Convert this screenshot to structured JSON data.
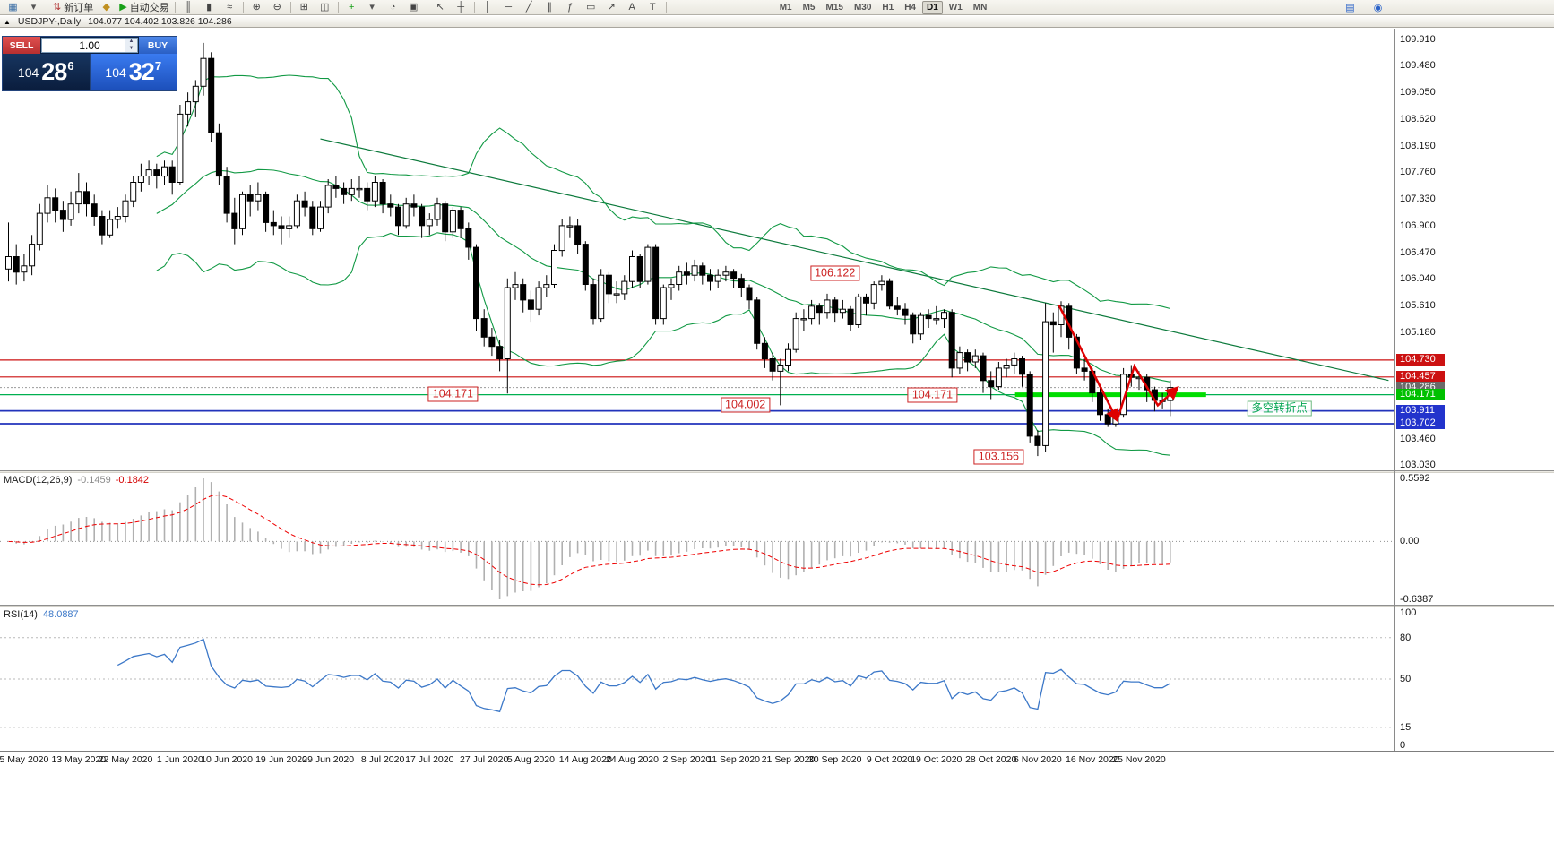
{
  "toolbar": {
    "items": [
      {
        "name": "new-chart-icon",
        "glyph": "▦",
        "color": "#3b6ea5"
      },
      {
        "name": "profiles-icon",
        "glyph": "▾",
        "color": "#555555"
      },
      {
        "sep": true
      },
      {
        "name": "new-order-button",
        "glyph": "⇅",
        "color": "#b03030",
        "label": "新订单"
      },
      {
        "name": "expert-advisors-icon",
        "glyph": "◆",
        "color": "#c09020"
      },
      {
        "name": "autotrading-button",
        "glyph": "▶",
        "color": "#18a018",
        "label": "自动交易"
      },
      {
        "sep": true
      },
      {
        "name": "bar-chart-icon",
        "glyph": "║",
        "color": "#444444"
      },
      {
        "name": "candlestick-chart-icon",
        "glyph": "▮",
        "color": "#444444"
      },
      {
        "name": "line-chart-icon",
        "glyph": "≈",
        "color": "#444444"
      },
      {
        "sep": true
      },
      {
        "name": "zoom-in-icon",
        "glyph": "⊕",
        "color": "#444444"
      },
      {
        "name": "zoom-out-icon",
        "glyph": "⊖",
        "color": "#444444"
      },
      {
        "sep": true
      },
      {
        "name": "auto-arrange-icon",
        "glyph": "⊞",
        "color": "#444444"
      },
      {
        "name": "tile-windows-icon",
        "glyph": "◫",
        "color": "#444444"
      },
      {
        "sep": true
      },
      {
        "name": "indicators-icon",
        "glyph": "+",
        "color": "#18a018"
      },
      {
        "name": "indicators-list-icon",
        "glyph": "▾",
        "color": "#555555"
      },
      {
        "name": "periods-icon",
        "glyph": "◔",
        "color": "#444444"
      },
      {
        "name": "templates-icon",
        "glyph": "▣",
        "color": "#444444"
      },
      {
        "sep": true
      },
      {
        "name": "cursor-icon",
        "glyph": "↖",
        "color": "#444444"
      },
      {
        "name": "crosshair-icon",
        "glyph": "┼",
        "color": "#444444"
      },
      {
        "sep": true
      },
      {
        "name": "vertical-line-icon",
        "glyph": "│",
        "color": "#444444"
      },
      {
        "name": "horizontal-line-icon",
        "glyph": "─",
        "color": "#444444"
      },
      {
        "name": "trendline-icon",
        "glyph": "╱",
        "color": "#444444"
      },
      {
        "name": "channel-icon",
        "glyph": "∥",
        "color": "#444444"
      },
      {
        "name": "fibonacci-icon",
        "glyph": "ƒ",
        "color": "#444444"
      },
      {
        "name": "shapes-icon",
        "glyph": "▭",
        "color": "#444444"
      },
      {
        "name": "arrows-icon",
        "glyph": "↗",
        "color": "#444444"
      },
      {
        "name": "text-icon",
        "glyph": "A",
        "color": "#444444"
      },
      {
        "name": "text-label-icon",
        "glyph": "T",
        "color": "#444444"
      },
      {
        "sep": true
      }
    ],
    "timeframes": [
      "M1",
      "M5",
      "M15",
      "M30",
      "H1",
      "H4",
      "D1",
      "W1",
      "MN"
    ],
    "active_timeframe": "D1",
    "right_icons": [
      {
        "name": "quotes-icon",
        "glyph": "▤",
        "color": "#2a62c8"
      },
      {
        "name": "community-icon",
        "glyph": "◉",
        "color": "#2a62c8"
      }
    ]
  },
  "caption": {
    "icon": "▲",
    "title": "USDJPY-,Daily",
    "ohlc": "104.077 104.402 103.826 104.286"
  },
  "one_click": {
    "sell_label": "SELL",
    "buy_label": "BUY",
    "volume": "1.00",
    "sell": {
      "base": "104",
      "pips": "28",
      "frac": "6"
    },
    "buy": {
      "base": "104",
      "pips": "32",
      "frac": "7"
    }
  },
  "chart_data": {
    "type": "candlestick",
    "symbol": "USDJPY-",
    "period": "Daily",
    "ylim": [
      102.95,
      110.08
    ],
    "grid": false,
    "candles": [
      [
        106.2,
        106.95,
        106.0,
        106.4
      ],
      [
        106.4,
        106.6,
        105.95,
        106.15
      ],
      [
        106.15,
        106.45,
        106.0,
        106.25
      ],
      [
        106.25,
        106.75,
        106.1,
        106.6
      ],
      [
        106.6,
        107.25,
        106.5,
        107.1
      ],
      [
        107.1,
        107.55,
        106.95,
        107.35
      ],
      [
        107.35,
        107.5,
        106.95,
        107.15
      ],
      [
        107.15,
        107.3,
        106.8,
        107.0
      ],
      [
        107.0,
        107.45,
        106.9,
        107.25
      ],
      [
        107.25,
        107.75,
        107.1,
        107.45
      ],
      [
        107.45,
        107.6,
        107.05,
        107.25
      ],
      [
        107.25,
        107.4,
        106.9,
        107.05
      ],
      [
        107.05,
        107.15,
        106.6,
        106.75
      ],
      [
        106.75,
        107.15,
        106.7,
        107.0
      ],
      [
        107.0,
        107.2,
        106.85,
        107.05
      ],
      [
        107.05,
        107.4,
        106.95,
        107.3
      ],
      [
        107.3,
        107.7,
        107.2,
        107.6
      ],
      [
        107.6,
        107.9,
        107.45,
        107.7
      ],
      [
        107.7,
        107.95,
        107.55,
        107.8
      ],
      [
        107.8,
        107.9,
        107.5,
        107.7
      ],
      [
        107.7,
        107.95,
        107.55,
        107.85
      ],
      [
        107.85,
        107.95,
        107.4,
        107.6
      ],
      [
        107.6,
        108.85,
        107.55,
        108.7
      ],
      [
        108.7,
        109.05,
        108.5,
        108.9
      ],
      [
        108.9,
        109.25,
        108.65,
        109.15
      ],
      [
        109.15,
        109.85,
        109.0,
        109.6
      ],
      [
        109.6,
        109.7,
        108.25,
        108.4
      ],
      [
        108.4,
        108.55,
        107.55,
        107.7
      ],
      [
        107.7,
        107.85,
        106.95,
        107.1
      ],
      [
        107.1,
        107.35,
        106.6,
        106.85
      ],
      [
        106.85,
        107.45,
        106.75,
        107.4
      ],
      [
        107.4,
        107.55,
        107.05,
        107.3
      ],
      [
        107.3,
        107.6,
        107.15,
        107.4
      ],
      [
        107.4,
        107.45,
        106.8,
        106.95
      ],
      [
        106.95,
        107.15,
        106.75,
        106.9
      ],
      [
        106.9,
        107.05,
        106.6,
        106.85
      ],
      [
        106.85,
        107.05,
        106.7,
        106.9
      ],
      [
        106.9,
        107.4,
        106.85,
        107.3
      ],
      [
        107.3,
        107.45,
        107.05,
        107.2
      ],
      [
        107.2,
        107.3,
        106.75,
        106.85
      ],
      [
        106.85,
        107.3,
        106.8,
        107.2
      ],
      [
        107.2,
        107.65,
        107.1,
        107.55
      ],
      [
        107.55,
        107.7,
        107.35,
        107.5
      ],
      [
        107.5,
        107.6,
        107.25,
        107.4
      ],
      [
        107.4,
        107.65,
        107.3,
        107.5
      ],
      [
        107.5,
        107.7,
        107.35,
        107.5
      ],
      [
        107.5,
        107.6,
        107.15,
        107.3
      ],
      [
        107.3,
        107.7,
        107.2,
        107.6
      ],
      [
        107.6,
        107.65,
        107.1,
        107.25
      ],
      [
        107.25,
        107.4,
        107.05,
        107.2
      ],
      [
        107.2,
        107.25,
        106.75,
        106.9
      ],
      [
        106.9,
        107.35,
        106.85,
        107.25
      ],
      [
        107.25,
        107.4,
        107.05,
        107.2
      ],
      [
        107.2,
        107.25,
        106.7,
        106.9
      ],
      [
        106.9,
        107.1,
        106.75,
        107.0
      ],
      [
        107.0,
        107.35,
        106.9,
        107.25
      ],
      [
        107.25,
        107.3,
        106.65,
        106.8
      ],
      [
        106.8,
        107.2,
        106.7,
        107.15
      ],
      [
        107.15,
        107.2,
        106.7,
        106.85
      ],
      [
        106.85,
        106.95,
        106.35,
        106.55
      ],
      [
        106.55,
        106.6,
        105.2,
        105.4
      ],
      [
        105.4,
        105.55,
        104.95,
        105.1
      ],
      [
        105.1,
        105.25,
        104.8,
        104.95
      ],
      [
        104.95,
        105.05,
        104.55,
        104.75
      ],
      [
        104.75,
        106.05,
        104.19,
        105.9
      ],
      [
        105.9,
        106.15,
        105.7,
        105.95
      ],
      [
        105.95,
        106.05,
        105.5,
        105.7
      ],
      [
        105.7,
        105.85,
        105.35,
        105.55
      ],
      [
        105.55,
        106.0,
        105.45,
        105.9
      ],
      [
        105.9,
        106.1,
        105.75,
        105.95
      ],
      [
        105.95,
        106.6,
        105.9,
        106.5
      ],
      [
        106.5,
        107.0,
        106.4,
        106.9
      ],
      [
        106.9,
        107.05,
        106.7,
        106.9
      ],
      [
        106.9,
        107.0,
        106.45,
        106.6
      ],
      [
        106.6,
        106.65,
        105.85,
        105.95
      ],
      [
        105.95,
        106.05,
        105.3,
        105.4
      ],
      [
        105.4,
        106.2,
        105.35,
        106.1
      ],
      [
        106.1,
        106.15,
        105.65,
        105.8
      ],
      [
        105.8,
        106.0,
        105.65,
        105.8
      ],
      [
        105.8,
        106.1,
        105.7,
        106.0
      ],
      [
        106.0,
        106.5,
        105.9,
        106.4
      ],
      [
        106.4,
        106.45,
        105.9,
        106.0
      ],
      [
        106.0,
        106.6,
        105.95,
        106.55
      ],
      [
        106.55,
        106.6,
        105.3,
        105.4
      ],
      [
        105.4,
        105.95,
        105.3,
        105.9
      ],
      [
        105.9,
        106.05,
        105.7,
        105.95
      ],
      [
        105.95,
        106.25,
        105.85,
        106.15
      ],
      [
        106.15,
        106.3,
        105.95,
        106.1
      ],
      [
        106.1,
        106.35,
        106.0,
        106.25
      ],
      [
        106.25,
        106.3,
        105.95,
        106.1
      ],
      [
        106.1,
        106.2,
        105.85,
        106.0
      ],
      [
        106.0,
        106.2,
        105.9,
        106.1
      ],
      [
        106.1,
        106.25,
        106.0,
        106.15
      ],
      [
        106.15,
        106.2,
        105.9,
        106.05
      ],
      [
        106.05,
        106.12,
        105.75,
        105.9
      ],
      [
        105.9,
        105.95,
        105.55,
        105.7
      ],
      [
        105.7,
        105.75,
        104.9,
        105.0
      ],
      [
        105.0,
        105.1,
        104.6,
        104.75
      ],
      [
        104.75,
        104.85,
        104.4,
        104.55
      ],
      [
        104.55,
        104.75,
        104.0,
        104.65
      ],
      [
        104.65,
        105.0,
        104.55,
        104.9
      ],
      [
        104.9,
        105.5,
        104.85,
        105.4
      ],
      [
        105.4,
        105.55,
        105.2,
        105.4
      ],
      [
        105.4,
        105.7,
        105.3,
        105.6
      ],
      [
        105.6,
        105.65,
        105.3,
        105.5
      ],
      [
        105.5,
        105.8,
        105.4,
        105.7
      ],
      [
        105.7,
        105.75,
        105.35,
        105.5
      ],
      [
        105.5,
        105.7,
        105.4,
        105.55
      ],
      [
        105.55,
        105.6,
        105.2,
        105.3
      ],
      [
        105.3,
        105.8,
        105.25,
        105.75
      ],
      [
        105.75,
        105.8,
        105.45,
        105.65
      ],
      [
        105.65,
        106.0,
        105.55,
        105.95
      ],
      [
        105.95,
        106.1,
        105.85,
        106.0
      ],
      [
        106.0,
        106.05,
        105.55,
        105.6
      ],
      [
        105.6,
        105.75,
        105.45,
        105.55
      ],
      [
        105.55,
        105.65,
        105.3,
        105.45
      ],
      [
        105.45,
        105.5,
        105.0,
        105.15
      ],
      [
        105.15,
        105.5,
        105.05,
        105.45
      ],
      [
        105.45,
        105.55,
        105.25,
        105.4
      ],
      [
        105.4,
        105.6,
        105.3,
        105.4
      ],
      [
        105.4,
        105.55,
        105.25,
        105.5
      ],
      [
        105.5,
        105.55,
        104.45,
        104.6
      ],
      [
        104.6,
        104.95,
        104.5,
        104.85
      ],
      [
        104.85,
        104.9,
        104.55,
        104.7
      ],
      [
        104.7,
        104.9,
        104.6,
        104.8
      ],
      [
        104.8,
        104.85,
        104.2,
        104.4
      ],
      [
        104.4,
        104.55,
        104.1,
        104.3
      ],
      [
        104.3,
        104.7,
        104.25,
        104.6
      ],
      [
        104.6,
        104.75,
        104.45,
        104.65
      ],
      [
        104.65,
        104.85,
        104.5,
        104.75
      ],
      [
        104.75,
        104.8,
        104.3,
        104.5
      ],
      [
        104.5,
        104.55,
        103.4,
        103.5
      ],
      [
        103.5,
        103.6,
        103.18,
        103.35
      ],
      [
        103.35,
        105.65,
        103.25,
        105.35
      ],
      [
        105.35,
        105.5,
        104.85,
        105.3
      ],
      [
        105.3,
        105.68,
        105.1,
        105.6
      ],
      [
        105.6,
        105.65,
        104.9,
        105.1
      ],
      [
        105.1,
        105.15,
        104.5,
        104.6
      ],
      [
        104.6,
        104.75,
        104.4,
        104.55
      ],
      [
        104.55,
        104.6,
        104.05,
        104.2
      ],
      [
        104.2,
        104.3,
        103.75,
        103.85
      ],
      [
        103.85,
        103.95,
        103.65,
        103.7
      ],
      [
        103.7,
        103.95,
        103.65,
        103.85
      ],
      [
        103.85,
        104.6,
        103.8,
        104.5
      ],
      [
        104.5,
        104.65,
        104.3,
        104.45
      ],
      [
        104.45,
        104.55,
        104.25,
        104.45
      ],
      [
        104.45,
        104.5,
        104.05,
        104.25
      ],
      [
        104.25,
        104.3,
        103.9,
        104.08
      ],
      [
        104.08,
        104.2,
        103.95,
        104.08
      ],
      [
        104.077,
        104.402,
        103.826,
        104.286
      ]
    ],
    "x_labels": [
      "5 May 2020",
      "13 May 2020",
      "22 May 2020",
      "1 Jun 2020",
      "10 Jun 2020",
      "19 Jun 2020",
      "29 Jun 2020",
      "8 Jul 2020",
      "17 Jul 2020",
      "27 Jul 2020",
      "5 Aug 2020",
      "14 Aug 2020",
      "24 Aug 2020",
      "2 Sep 2020",
      "11 Sep 2020",
      "21 Sep 2020",
      "30 Sep 2020",
      "9 Oct 2020",
      "19 Oct 2020",
      "28 Oct 2020",
      "6 Nov 2020",
      "16 Nov 2020",
      "25 Nov 2020"
    ],
    "y_ticks": [
      "109.910",
      "109.480",
      "109.050",
      "108.620",
      "108.190",
      "107.760",
      "107.330",
      "106.900",
      "106.470",
      "106.040",
      "105.610",
      "105.180",
      "103.460",
      "103.030"
    ],
    "badges": [
      {
        "label": "104.730",
        "price": 104.73,
        "bg": "#cc1111"
      },
      {
        "label": "104.457",
        "price": 104.457,
        "bg": "#cc1111"
      },
      {
        "label": "104.286",
        "price": 104.286,
        "bg": "#6a6a6a"
      },
      {
        "label": "104.171",
        "price": 104.171,
        "bg": "#00c000"
      },
      {
        "label": "103.911",
        "price": 103.911,
        "bg": "#2233cc"
      },
      {
        "label": "103.702",
        "price": 103.702,
        "bg": "#2233cc"
      }
    ],
    "hlines": [
      {
        "price": 104.73,
        "color": "#cc1111",
        "width": 1.2
      },
      {
        "price": 104.457,
        "color": "#cc1111",
        "width": 1.2
      },
      {
        "price": 104.171,
        "color": "#00b050",
        "width": 1.2
      },
      {
        "price": 103.911,
        "color": "#2233bb",
        "width": 1.8
      },
      {
        "price": 103.702,
        "color": "#2233bb",
        "width": 1.8
      }
    ],
    "bid_line": {
      "price": 104.286,
      "label": "104.286",
      "color": "#9a9a9a"
    },
    "trendline": {
      "i1": 40,
      "p1": 108.3,
      "i2": 177,
      "p2": 104.4,
      "color": "#0c7a3c"
    },
    "thick_segment": {
      "i1": 129.5,
      "i2": 154,
      "price": 104.171,
      "color": "#00dd00",
      "width": 5
    },
    "zigzag": {
      "color": "#dd0000",
      "points": [
        [
          134.7,
          105.62
        ],
        [
          142.2,
          103.76
        ],
        [
          144.4,
          104.63
        ],
        [
          147.4,
          104.0
        ],
        [
          149.9,
          104.28
        ]
      ]
    },
    "text_labels": [
      {
        "name": "swing-high-label",
        "text": "106.122",
        "i": 106,
        "p": 106.13
      },
      {
        "name": "support-label-jul",
        "text": "104.171",
        "i": 57,
        "p": 104.18
      },
      {
        "name": "low-label-sep",
        "text": "104.002",
        "i": 94.5,
        "p": 104.01
      },
      {
        "name": "support-label-oct",
        "text": "104.171",
        "i": 118.5,
        "p": 104.17
      },
      {
        "name": "low-label-nov",
        "text": "103.156",
        "i": 127,
        "p": 103.16
      },
      {
        "name": "turning-point-label",
        "text": "多空转折点",
        "i": 163,
        "p": 103.95,
        "color": "#00a54f",
        "border": "#6fbb82"
      }
    ],
    "indicators": {
      "bollinger": {
        "period": 20,
        "deviation": 2,
        "color": "#119944"
      },
      "macd": {
        "name": "MACD(12,26,9)",
        "main": "-0.1459",
        "signal": "-0.1842",
        "axis": [
          "0.5592",
          "0.00",
          "-0.6387"
        ],
        "hist_color": "#b0b0b0",
        "signal_color": "#ee0000"
      },
      "rsi": {
        "name": "RSI(14)",
        "value": "48.0887",
        "axis": [
          "100",
          "80",
          "50",
          "15",
          "0"
        ],
        "levels": [
          80,
          50,
          15
        ],
        "color": "#3c78c8"
      }
    }
  }
}
